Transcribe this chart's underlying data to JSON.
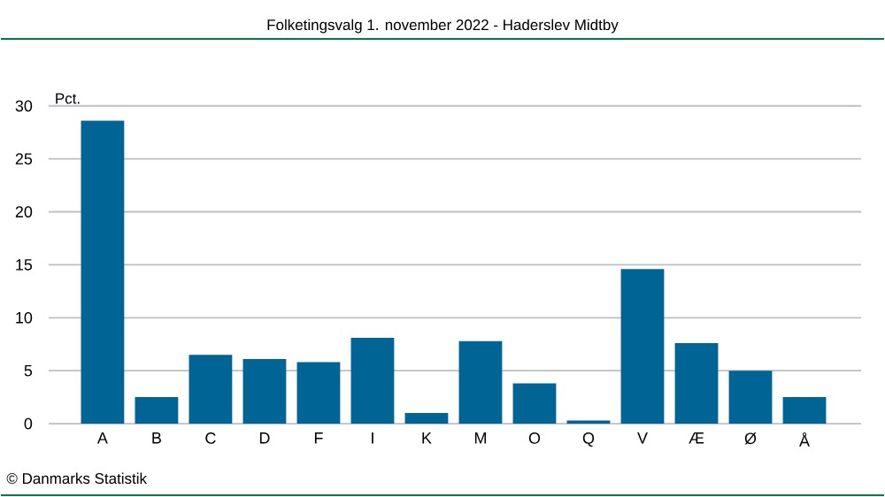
{
  "chart_data": {
    "type": "bar",
    "title": "Folketingsvalg 1. november 2022 - Haderslev Midtby",
    "ylabel": "Pct.",
    "categories": [
      "A",
      "B",
      "C",
      "D",
      "F",
      "I",
      "K",
      "M",
      "O",
      "Q",
      "V",
      "Æ",
      "Ø",
      "Å"
    ],
    "values": [
      28.6,
      2.5,
      6.5,
      6.1,
      5.8,
      8.1,
      1.0,
      7.8,
      3.8,
      0.3,
      14.6,
      7.6,
      5.0,
      2.5
    ],
    "color": "#006495",
    "ylim": [
      0,
      30
    ],
    "yticks": [
      0,
      5,
      10,
      15,
      20,
      25,
      30
    ],
    "grid": "y",
    "annotations": [
      "© Danmarks Statistik"
    ]
  }
}
